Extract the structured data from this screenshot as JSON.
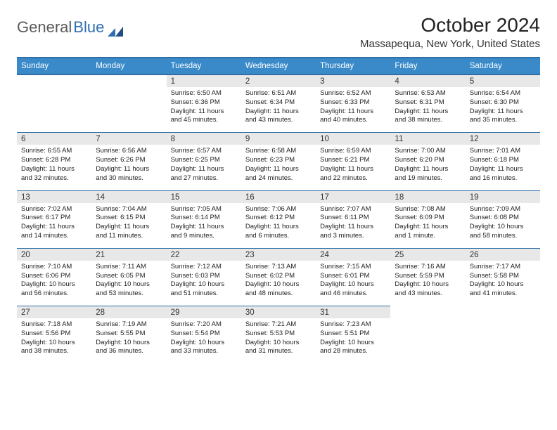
{
  "brand": {
    "part1": "General",
    "part2": "Blue"
  },
  "title": "October 2024",
  "location": "Massapequa, New York, United States",
  "header_bg": "#3a8ac9",
  "header_border": "#2f6fa5",
  "daynum_bg": "#e8e8e8",
  "dow": [
    "Sunday",
    "Monday",
    "Tuesday",
    "Wednesday",
    "Thursday",
    "Friday",
    "Saturday"
  ],
  "weeks": [
    [
      null,
      null,
      {
        "n": "1",
        "sr": "6:50 AM",
        "ss": "6:36 PM",
        "dl": "11 hours and 45 minutes."
      },
      {
        "n": "2",
        "sr": "6:51 AM",
        "ss": "6:34 PM",
        "dl": "11 hours and 43 minutes."
      },
      {
        "n": "3",
        "sr": "6:52 AM",
        "ss": "6:33 PM",
        "dl": "11 hours and 40 minutes."
      },
      {
        "n": "4",
        "sr": "6:53 AM",
        "ss": "6:31 PM",
        "dl": "11 hours and 38 minutes."
      },
      {
        "n": "5",
        "sr": "6:54 AM",
        "ss": "6:30 PM",
        "dl": "11 hours and 35 minutes."
      }
    ],
    [
      {
        "n": "6",
        "sr": "6:55 AM",
        "ss": "6:28 PM",
        "dl": "11 hours and 32 minutes."
      },
      {
        "n": "7",
        "sr": "6:56 AM",
        "ss": "6:26 PM",
        "dl": "11 hours and 30 minutes."
      },
      {
        "n": "8",
        "sr": "6:57 AM",
        "ss": "6:25 PM",
        "dl": "11 hours and 27 minutes."
      },
      {
        "n": "9",
        "sr": "6:58 AM",
        "ss": "6:23 PM",
        "dl": "11 hours and 24 minutes."
      },
      {
        "n": "10",
        "sr": "6:59 AM",
        "ss": "6:21 PM",
        "dl": "11 hours and 22 minutes."
      },
      {
        "n": "11",
        "sr": "7:00 AM",
        "ss": "6:20 PM",
        "dl": "11 hours and 19 minutes."
      },
      {
        "n": "12",
        "sr": "7:01 AM",
        "ss": "6:18 PM",
        "dl": "11 hours and 16 minutes."
      }
    ],
    [
      {
        "n": "13",
        "sr": "7:02 AM",
        "ss": "6:17 PM",
        "dl": "11 hours and 14 minutes."
      },
      {
        "n": "14",
        "sr": "7:04 AM",
        "ss": "6:15 PM",
        "dl": "11 hours and 11 minutes."
      },
      {
        "n": "15",
        "sr": "7:05 AM",
        "ss": "6:14 PM",
        "dl": "11 hours and 9 minutes."
      },
      {
        "n": "16",
        "sr": "7:06 AM",
        "ss": "6:12 PM",
        "dl": "11 hours and 6 minutes."
      },
      {
        "n": "17",
        "sr": "7:07 AM",
        "ss": "6:11 PM",
        "dl": "11 hours and 3 minutes."
      },
      {
        "n": "18",
        "sr": "7:08 AM",
        "ss": "6:09 PM",
        "dl": "11 hours and 1 minute."
      },
      {
        "n": "19",
        "sr": "7:09 AM",
        "ss": "6:08 PM",
        "dl": "10 hours and 58 minutes."
      }
    ],
    [
      {
        "n": "20",
        "sr": "7:10 AM",
        "ss": "6:06 PM",
        "dl": "10 hours and 56 minutes."
      },
      {
        "n": "21",
        "sr": "7:11 AM",
        "ss": "6:05 PM",
        "dl": "10 hours and 53 minutes."
      },
      {
        "n": "22",
        "sr": "7:12 AM",
        "ss": "6:03 PM",
        "dl": "10 hours and 51 minutes."
      },
      {
        "n": "23",
        "sr": "7:13 AM",
        "ss": "6:02 PM",
        "dl": "10 hours and 48 minutes."
      },
      {
        "n": "24",
        "sr": "7:15 AM",
        "ss": "6:01 PM",
        "dl": "10 hours and 46 minutes."
      },
      {
        "n": "25",
        "sr": "7:16 AM",
        "ss": "5:59 PM",
        "dl": "10 hours and 43 minutes."
      },
      {
        "n": "26",
        "sr": "7:17 AM",
        "ss": "5:58 PM",
        "dl": "10 hours and 41 minutes."
      }
    ],
    [
      {
        "n": "27",
        "sr": "7:18 AM",
        "ss": "5:56 PM",
        "dl": "10 hours and 38 minutes."
      },
      {
        "n": "28",
        "sr": "7:19 AM",
        "ss": "5:55 PM",
        "dl": "10 hours and 36 minutes."
      },
      {
        "n": "29",
        "sr": "7:20 AM",
        "ss": "5:54 PM",
        "dl": "10 hours and 33 minutes."
      },
      {
        "n": "30",
        "sr": "7:21 AM",
        "ss": "5:53 PM",
        "dl": "10 hours and 31 minutes."
      },
      {
        "n": "31",
        "sr": "7:23 AM",
        "ss": "5:51 PM",
        "dl": "10 hours and 28 minutes."
      },
      null,
      null
    ]
  ],
  "labels": {
    "sunrise": "Sunrise:",
    "sunset": "Sunset:",
    "daylight": "Daylight:"
  }
}
